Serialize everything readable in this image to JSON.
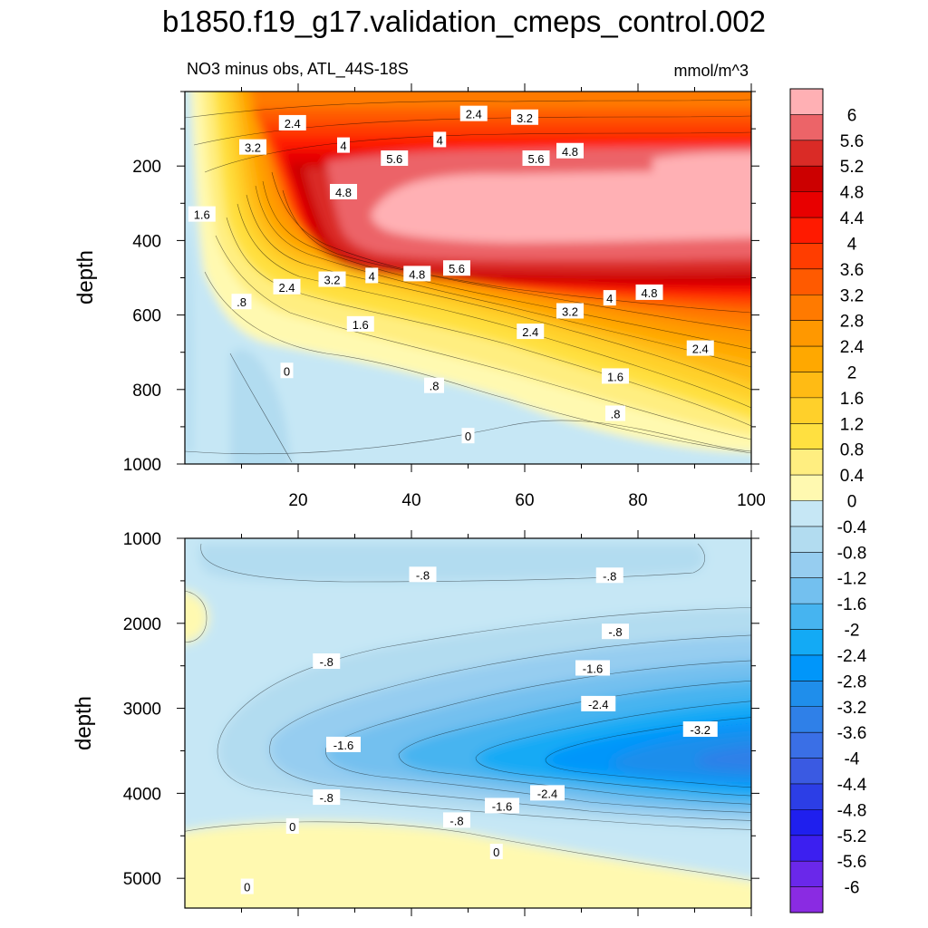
{
  "figure": {
    "title": "b1850.f19_g17.validation_cmeps_control.002",
    "subtitle_left": "NO3 minus obs, ATL_44S-18S",
    "subtitle_right": "mmol/m^3"
  },
  "chart_data": [
    {
      "type": "heatmap",
      "name": "upper-panel",
      "description": "filled contour",
      "xlabel": "",
      "ylabel": "depth",
      "xlim": [
        0,
        100
      ],
      "ylim": [
        1000,
        0
      ],
      "xticks": [
        20,
        40,
        60,
        80,
        100
      ],
      "yticks": [
        200,
        400,
        600,
        800,
        1000
      ],
      "contour_labels": [
        {
          "text": "2.4",
          "x": 19,
          "y": 85
        },
        {
          "text": "2.4",
          "x": 51,
          "y": 60
        },
        {
          "text": "3.2",
          "x": 60,
          "y": 70
        },
        {
          "text": "3.2",
          "x": 12,
          "y": 150
        },
        {
          "text": "4",
          "x": 28,
          "y": 145
        },
        {
          "text": "4",
          "x": 45,
          "y": 130
        },
        {
          "text": "5.6",
          "x": 37,
          "y": 180
        },
        {
          "text": "5.6",
          "x": 62,
          "y": 180
        },
        {
          "text": "4.8",
          "x": 68,
          "y": 160
        },
        {
          "text": "4.8",
          "x": 28,
          "y": 270
        },
        {
          "text": "1.6",
          "x": 3,
          "y": 330
        },
        {
          "text": "2.4",
          "x": 18,
          "y": 525
        },
        {
          "text": "3.2",
          "x": 26,
          "y": 505
        },
        {
          "text": "4",
          "x": 33,
          "y": 495
        },
        {
          "text": "4.8",
          "x": 41,
          "y": 490
        },
        {
          "text": "5.6",
          "x": 48,
          "y": 475
        },
        {
          "text": "4.8",
          "x": 82,
          "y": 540
        },
        {
          "text": "4",
          "x": 75,
          "y": 555
        },
        {
          "text": ".8",
          "x": 10,
          "y": 565
        },
        {
          "text": "3.2",
          "x": 68,
          "y": 590
        },
        {
          "text": "1.6",
          "x": 31,
          "y": 625
        },
        {
          "text": "2.4",
          "x": 61,
          "y": 645
        },
        {
          "text": "2.4",
          "x": 91,
          "y": 690
        },
        {
          "text": "0",
          "x": 18,
          "y": 750
        },
        {
          "text": ".8",
          "x": 44,
          "y": 790
        },
        {
          "text": "1.6",
          "x": 76,
          "y": 765
        },
        {
          "text": ".8",
          "x": 76,
          "y": 865
        },
        {
          "text": "0",
          "x": 50,
          "y": 925
        }
      ]
    },
    {
      "type": "heatmap",
      "name": "lower-panel",
      "description": "filled contour",
      "xlabel": "",
      "ylabel": "depth",
      "xlim": [
        0,
        100
      ],
      "ylim": [
        5350,
        1000
      ],
      "yticks": [
        1000,
        2000,
        3000,
        4000,
        5000
      ],
      "contour_labels": [
        {
          "text": "-.8",
          "x": 42,
          "y": 1430
        },
        {
          "text": "-.8",
          "x": 75,
          "y": 1440
        },
        {
          "text": "-.8",
          "x": 76,
          "y": 2100
        },
        {
          "text": "-.8",
          "x": 25,
          "y": 2450
        },
        {
          "text": "-1.6",
          "x": 72,
          "y": 2530
        },
        {
          "text": "-2.4",
          "x": 73,
          "y": 2950
        },
        {
          "text": "-3.2",
          "x": 91,
          "y": 3250
        },
        {
          "text": "-1.6",
          "x": 28,
          "y": 3430
        },
        {
          "text": "-2.4",
          "x": 64,
          "y": 4000
        },
        {
          "text": "-1.6",
          "x": 56,
          "y": 4150
        },
        {
          "text": "-.8",
          "x": 25,
          "y": 4050
        },
        {
          "text": "-.8",
          "x": 48,
          "y": 4320
        },
        {
          "text": "0",
          "x": 19,
          "y": 4390
        },
        {
          "text": "0",
          "x": 55,
          "y": 4690
        },
        {
          "text": "0",
          "x": 11,
          "y": 5100
        }
      ]
    },
    {
      "type": "colorbar",
      "name": "colorbar",
      "levels": [
        "6",
        "5.6",
        "5.2",
        "4.8",
        "4.4",
        "4",
        "3.6",
        "3.2",
        "2.8",
        "2.4",
        "2",
        "1.6",
        "1.2",
        "0.8",
        "0.4",
        "0",
        "-0.4",
        "-0.8",
        "-1.2",
        "-1.6",
        "-2",
        "-2.4",
        "-2.8",
        "-3.2",
        "-3.6",
        "-4",
        "-4.4",
        "-4.8",
        "-5.2",
        "-5.6",
        "-6"
      ],
      "colors": [
        "#ffb0b4",
        "#ec6468",
        "#da2b26",
        "#cc0000",
        "#e80000",
        "#ff1a00",
        "#ff3d00",
        "#ff5a00",
        "#ff7a00",
        "#ff9800",
        "#ffa800",
        "#ffbb14",
        "#ffd02a",
        "#ffe040",
        "#ffee80",
        "#fff9b0",
        "#c6e7f5",
        "#b2dcf0",
        "#96cdf0",
        "#73c0ef",
        "#46b4f0",
        "#13aaf5",
        "#0096fa",
        "#1f8eeb",
        "#2f80e8",
        "#3a6fe6",
        "#3a5ae2",
        "#2c3ee6",
        "#1f1fee",
        "#3c1ff0",
        "#6a28ea",
        "#8a2be2"
      ]
    }
  ],
  "colors": {
    "ocean_base": "#c6e7f5",
    "zero_band": "#fff9b0"
  }
}
